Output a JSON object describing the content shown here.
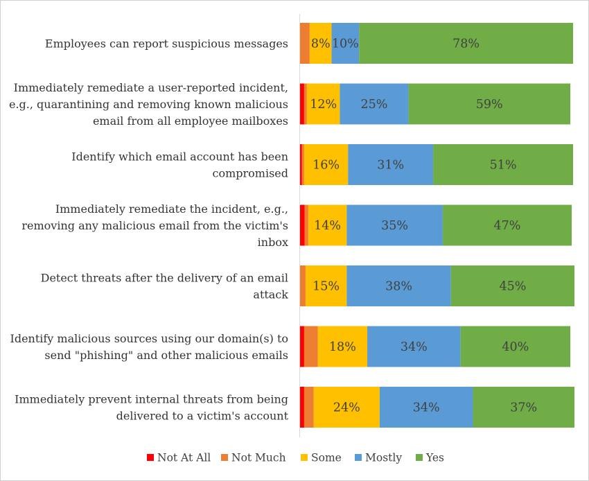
{
  "chart_data": {
    "type": "bar",
    "orientation": "horizontal",
    "stacked": true,
    "percent_stacked": true,
    "categories": [
      [
        "Employees can report suspicious messages"
      ],
      [
        "Immediately remediate a user-reported incident,",
        "e.g., quarantining and removing known malicious",
        "email from all employee mailboxes"
      ],
      [
        "Identify which email account has been",
        "compromised"
      ],
      [
        "Immediately remediate the incident, e.g.,",
        "removing any malicious email from the victim's",
        "inbox"
      ],
      [
        "Detect threats after the delivery of an email",
        "attack"
      ],
      [
        "Identify malicious sources using our domain(s) to",
        "send \"phishing\" and other malicious emails"
      ],
      [
        "Immediately prevent internal threats from being",
        "delivered to a victim's account"
      ]
    ],
    "series": [
      {
        "name": "Not At All",
        "color": "#FF0000",
        "values": [
          0,
          1.5,
          0.7,
          1.7,
          0,
          1.5,
          1.5
        ],
        "labels": [
          "",
          "",
          "",
          "",
          "",
          "",
          ""
        ]
      },
      {
        "name": "Not Much",
        "color": "#ED7D31",
        "values": [
          3.5,
          1,
          0.8,
          1.3,
          2,
          5,
          3.5
        ],
        "labels": [
          "",
          "",
          "",
          "",
          "",
          "",
          ""
        ]
      },
      {
        "name": "Some",
        "color": "#FFC000",
        "values": [
          8,
          12,
          16,
          14,
          15,
          18,
          24
        ],
        "labels": [
          "8%",
          "12%",
          "16%",
          "14%",
          "15%",
          "18%",
          "24%"
        ]
      },
      {
        "name": "Mostly",
        "color": "#5B9BD5",
        "values": [
          10,
          25,
          31,
          35,
          38,
          34,
          34
        ],
        "labels": [
          "10%",
          "25%",
          "31%",
          "35%",
          "38%",
          "34%",
          "34%"
        ]
      },
      {
        "name": "Yes",
        "color": "#70AD47",
        "values": [
          78,
          59,
          51,
          47,
          45,
          40,
          37
        ],
        "labels": [
          "78%",
          "59%",
          "51%",
          "47%",
          "45%",
          "40%",
          "37%"
        ]
      }
    ],
    "xlim": [
      0,
      100
    ],
    "grid": false,
    "legend_position": "bottom"
  }
}
